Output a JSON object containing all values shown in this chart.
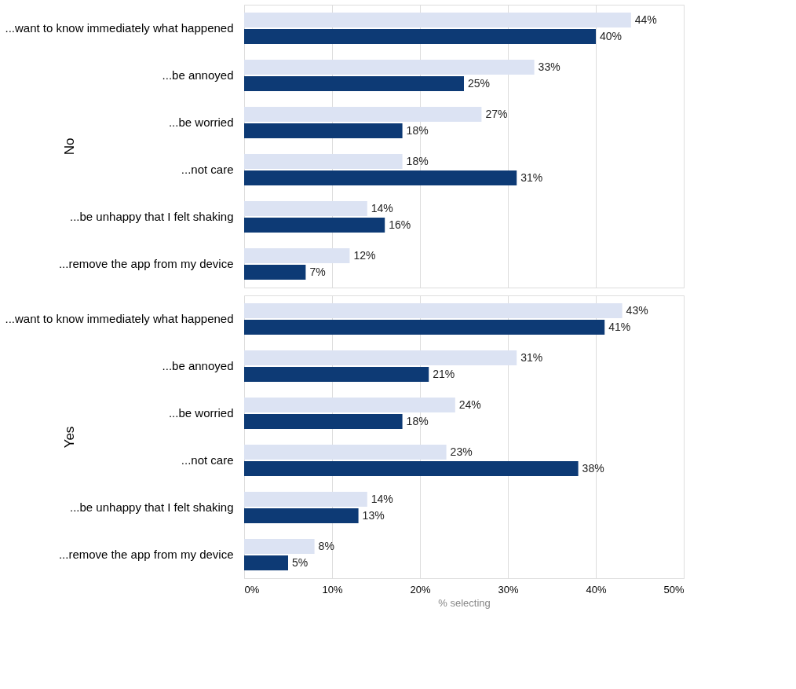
{
  "chart_data": [
    {
      "type": "bar",
      "orientation": "horizontal",
      "ylabel": "No",
      "categories": [
        "...want to know immediately what happened",
        "...be annoyed",
        "...be worried",
        "...not care",
        "...be unhappy that I felt shaking",
        "...remove the app from my device"
      ],
      "series": [
        {
          "color": "#dce3f3",
          "values": [
            44,
            33,
            27,
            18,
            14,
            12
          ],
          "value_labels": [
            "44%",
            "33%",
            "27%",
            "18%",
            "14%",
            "12%"
          ]
        },
        {
          "color": "#0d3a75",
          "values": [
            40,
            25,
            18,
            31,
            16,
            7
          ],
          "value_labels": [
            "40%",
            "25%",
            "18%",
            "31%",
            "16%",
            "7%"
          ]
        }
      ],
      "xlim": [
        0,
        50
      ],
      "xticks": [
        {
          "value": 0,
          "label": null
        },
        {
          "value": 10,
          "label": null
        },
        {
          "value": 20,
          "label": null
        },
        {
          "value": 30,
          "label": null
        },
        {
          "value": 40,
          "label": null
        },
        {
          "value": 50,
          "label": null
        }
      ],
      "grid": "x",
      "legend": false,
      "tick_labels": "y"
    },
    {
      "type": "bar",
      "orientation": "horizontal",
      "ylabel": "Yes",
      "xlabel": "% selecting",
      "categories": [
        "...want to know immediately what happened",
        "...be annoyed",
        "...be worried",
        "...not care",
        "...be unhappy that I felt shaking",
        "...remove the app from my device"
      ],
      "series": [
        {
          "color": "#dce3f3",
          "values": [
            43,
            31,
            24,
            23,
            14,
            8
          ],
          "value_labels": [
            "43%",
            "31%",
            "24%",
            "23%",
            "14%",
            "8%"
          ]
        },
        {
          "color": "#0d3a75",
          "values": [
            41,
            21,
            18,
            38,
            13,
            5
          ],
          "value_labels": [
            "41%",
            "21%",
            "18%",
            "38%",
            "13%",
            "5%"
          ]
        }
      ],
      "xlim": [
        0,
        50
      ],
      "xticks": [
        {
          "value": 0,
          "label": "0%"
        },
        {
          "value": 10,
          "label": "10%"
        },
        {
          "value": 20,
          "label": "20%"
        },
        {
          "value": 30,
          "label": "30%"
        },
        {
          "value": 40,
          "label": "40%"
        },
        {
          "value": 50,
          "label": "50%"
        }
      ],
      "grid": "x",
      "legend": false
    }
  ]
}
